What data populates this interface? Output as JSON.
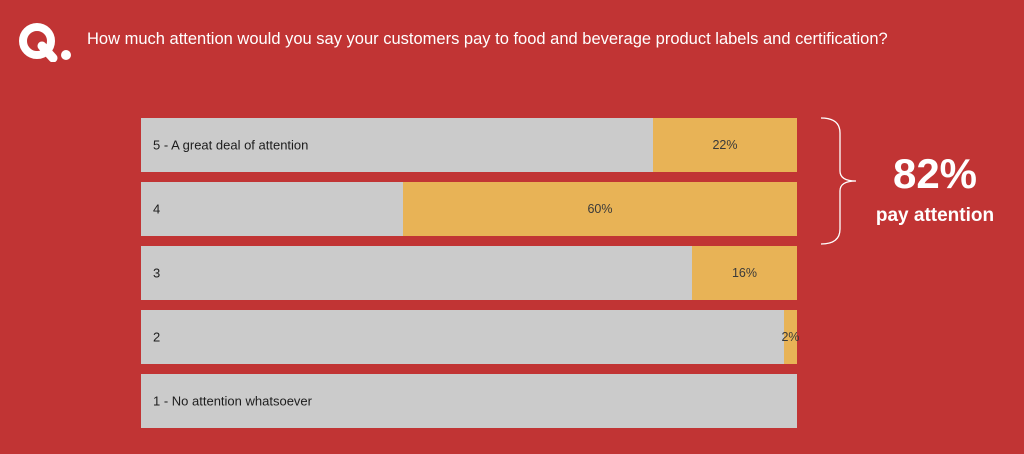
{
  "header": {
    "question": "How much attention would you say your customers pay to food and beverage product labels and certification?"
  },
  "logo": {
    "text": "Q."
  },
  "summary": {
    "value": "82%",
    "label": "pay attention"
  },
  "colors": {
    "background": "#c13434",
    "bar_background": "#cbcbcb",
    "bar_fill": "#e8b356",
    "text_light": "#ffffff"
  },
  "chart_data": {
    "type": "bar",
    "orientation": "horizontal",
    "categories": [
      "5 - A great deal of attention",
      "4",
      "3",
      "2",
      "1 - No attention whatsoever"
    ],
    "values": [
      22,
      60,
      16,
      2,
      null
    ],
    "value_labels": [
      "22%",
      "60%",
      "16%",
      "2%",
      ""
    ],
    "value_unit": "%",
    "xlim": [
      0,
      100
    ],
    "title": "",
    "xlabel": "",
    "ylabel": "",
    "grid": false,
    "legend": "none",
    "annotation": {
      "text": "82%",
      "subtext": "pay attention",
      "groups": [
        "5 - A great deal of attention",
        "4"
      ]
    }
  }
}
